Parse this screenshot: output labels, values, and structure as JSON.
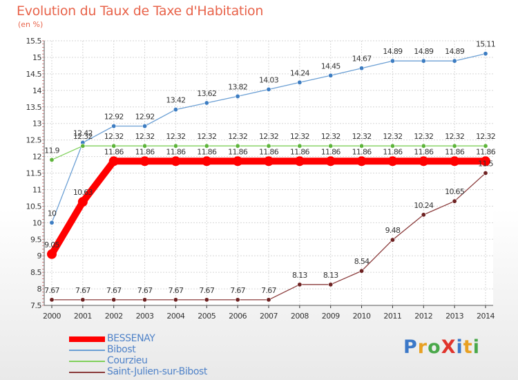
{
  "title": "Evolution du Taux de Taxe d'Habitation",
  "unit_label": "(en %)",
  "brand": {
    "text": "ProXiti",
    "letter_colors": [
      "#3b78c8",
      "#e8a022",
      "#4aa84a",
      "#e0342c",
      "#3b78c8",
      "#e8a022",
      "#4aa84a"
    ]
  },
  "chart_data": {
    "type": "line",
    "title": "Evolution du Taux de Taxe d'Habitation",
    "ylabel": "(en %)",
    "xlabel": "",
    "x": [
      "2000",
      "2001",
      "2002",
      "2003",
      "2004",
      "2005",
      "2006",
      "2007",
      "2008",
      "2009",
      "2010",
      "2011",
      "2012",
      "2013",
      "2014"
    ],
    "ylim": [
      7.5,
      15.5
    ],
    "yticks": [
      "7.5",
      "8",
      "8.5",
      "9",
      "9.5",
      "10",
      "10.5",
      "11",
      "11.5",
      "12",
      "12.5",
      "13",
      "13.5",
      "14",
      "14.5",
      "15",
      "15.5"
    ],
    "grid": true,
    "legend_position": "bottom-left",
    "series": [
      {
        "name": "Bibost",
        "color": "#6b9fd4",
        "point_color": "#3d7dc2",
        "values": [
          10,
          12.42,
          12.92,
          12.92,
          13.42,
          13.62,
          13.82,
          14.03,
          14.24,
          14.45,
          14.67,
          14.89,
          14.89,
          14.89,
          15.11
        ],
        "labels": [
          "10",
          "12.42",
          "12.92",
          "12.92",
          "13.42",
          "13.62",
          "13.82",
          "14.03",
          "14.24",
          "14.45",
          "14.67",
          "14.89",
          "14.89",
          "14.89",
          "15.11"
        ]
      },
      {
        "name": "Courzieu",
        "color": "#7fd05a",
        "point_color": "#5db43a",
        "values": [
          11.9,
          12.32,
          12.32,
          12.32,
          12.32,
          12.32,
          12.32,
          12.32,
          12.32,
          12.32,
          12.32,
          12.32,
          12.32,
          12.32,
          12.32
        ],
        "labels": [
          "11.9",
          "12.32",
          "12.32",
          "12.32",
          "12.32",
          "12.32",
          "12.32",
          "12.32",
          "12.32",
          "12.32",
          "12.32",
          "12.32",
          "12.32",
          "12.32",
          "12.32"
        ]
      },
      {
        "name": "BESSENAY",
        "color": "#ff0000",
        "point_color": "#ff0000",
        "values": [
          9.05,
          10.63,
          11.86,
          11.86,
          11.86,
          11.86,
          11.86,
          11.86,
          11.86,
          11.86,
          11.86,
          11.86,
          11.86,
          11.86,
          11.86
        ],
        "labels": [
          "9.05",
          "10.63",
          "11.86",
          "11.86",
          "11.86",
          "11.86",
          "11.86",
          "11.86",
          "11.86",
          "11.86",
          "11.86",
          "11.86",
          "11.86",
          "11.86",
          "11.86"
        ]
      },
      {
        "name": "Saint-Julien-sur-Bibost",
        "color": "#8a3a3a",
        "point_color": "#6e2222",
        "values": [
          7.67,
          7.67,
          7.67,
          7.67,
          7.67,
          7.67,
          7.67,
          7.67,
          8.13,
          8.13,
          8.54,
          9.48,
          10.24,
          10.65,
          11.5
        ],
        "labels": [
          "7.67",
          "7.67",
          "7.67",
          "7.67",
          "7.67",
          "7.67",
          "7.67",
          "7.67",
          "8.13",
          "8.13",
          "8.54",
          "9.48",
          "10.24",
          "10.65",
          "11.5"
        ]
      }
    ],
    "legend": [
      "BESSENAY",
      "Bibost",
      "Courzieu",
      "Saint-Julien-sur-Bibost"
    ]
  }
}
